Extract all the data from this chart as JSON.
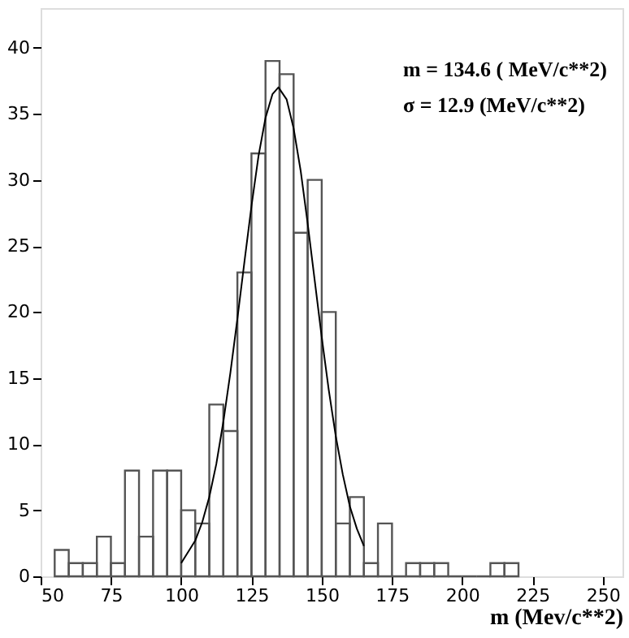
{
  "chart_data": {
    "type": "histogram",
    "xlabel": "m (Mev/c**2)",
    "annotations": [
      "m = 134.6 ( MeV/c**2)",
      "σ  = 12.9 (MeV/c**2)"
    ],
    "xlim": [
      50,
      257
    ],
    "ylim": [
      0,
      43
    ],
    "xticks": [
      50,
      75,
      100,
      125,
      150,
      175,
      200,
      225,
      250
    ],
    "yticks": [
      0,
      5,
      10,
      15,
      20,
      25,
      30,
      35,
      40
    ],
    "grid": false,
    "series": [
      {
        "color": "#555555",
        "bins": [
          55,
          60,
          65,
          70,
          75,
          80,
          85,
          90,
          95,
          100,
          105,
          110,
          115,
          120,
          125,
          130,
          135,
          140,
          145,
          150,
          155,
          160,
          165,
          170,
          175,
          180,
          185,
          190,
          195,
          200,
          205,
          210,
          215,
          220
        ],
        "values": [
          2,
          1,
          1,
          3,
          1,
          8,
          3,
          8,
          8,
          5,
          4,
          13,
          11,
          23,
          32,
          39,
          38,
          26,
          30,
          20,
          4,
          6,
          1,
          4,
          0,
          1,
          1,
          1,
          0,
          0,
          0,
          1,
          1
        ]
      },
      {
        "type": "line",
        "color": "#000000",
        "x": [
          100,
          105,
          107.5,
          110,
          112.5,
          115,
          117.5,
          120,
          122.5,
          125,
          127.5,
          130,
          132.5,
          134.6,
          137.5,
          140,
          142.5,
          145,
          147.5,
          150,
          152.5,
          155,
          157.5,
          160,
          162.5,
          165
        ],
        "values": [
          1.0,
          2.7,
          4.1,
          6.0,
          8.5,
          11.7,
          15.4,
          19.5,
          23.8,
          28.0,
          31.8,
          34.7,
          36.5,
          37.0,
          36.1,
          33.9,
          30.7,
          26.7,
          22.4,
          18.1,
          14.1,
          10.6,
          7.7,
          5.3,
          3.6,
          2.3
        ]
      }
    ]
  }
}
